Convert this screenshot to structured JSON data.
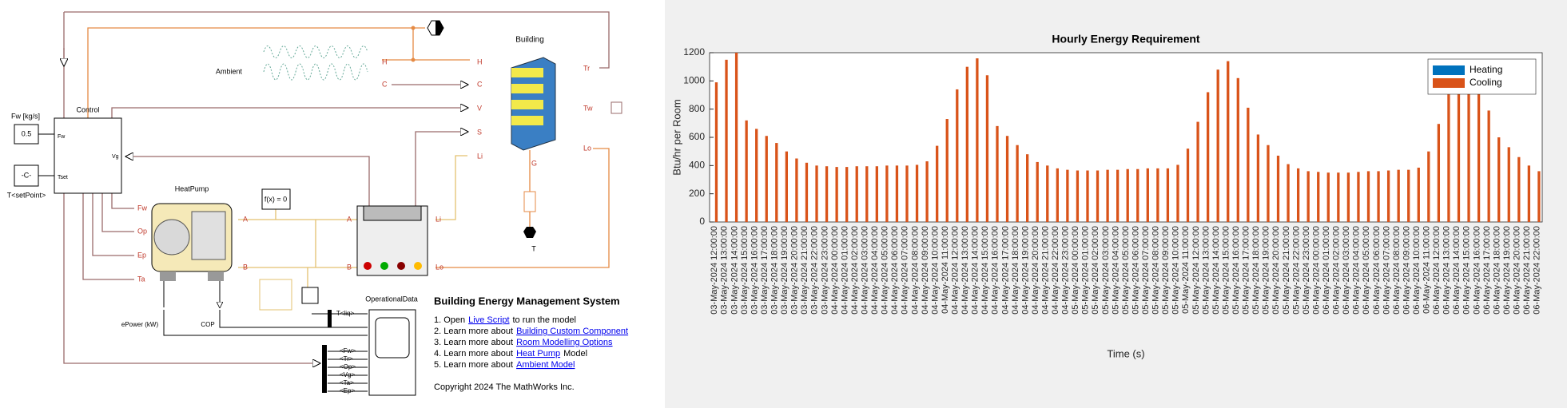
{
  "diagram": {
    "labels": [
      "T",
      "Building",
      "Ambient",
      "H",
      "H",
      "C",
      "C",
      "V",
      "Tr",
      "S",
      "Tw",
      "Li",
      "Lo",
      "G",
      "Fw [kg/s]",
      "0.5",
      "Control",
      "Fw",
      "Tset",
      "Vg",
      "-C-",
      "T<setPoint>",
      "HeatPump",
      "f(x) = 0",
      "Fw",
      "Op",
      "Ep",
      "Ta",
      "A",
      "A",
      "B",
      "B",
      "Li",
      "Lo",
      "T",
      "OperationalData",
      "T<liq>",
      "ePower (kW)",
      "COP",
      "<Fw>",
      "<Tr>",
      "<Op>",
      "<Vg>",
      "<Ta>",
      "<Ep>"
    ],
    "description": {
      "title": "Building Energy Management System",
      "items": [
        {
          "prefix": "1. Open",
          "link": "Live Script",
          "suffix": "to run the model"
        },
        {
          "prefix": "2. Learn more about",
          "link": "Building Custom Component"
        },
        {
          "prefix": "3. Learn more about",
          "link": "Room Modelling Options"
        },
        {
          "prefix": "4. Learn more about",
          "link": "Heat Pump",
          "suffix": "Model"
        },
        {
          "prefix": "5. Learn more about",
          "link": "Ambient Model"
        }
      ],
      "copyright": "Copyright 2024 The MathWorks Inc."
    }
  },
  "chart_data": {
    "type": "bar",
    "title": "Hourly Energy Requirement",
    "x_label": "Time (s)",
    "y_label": "Btu/hr per Room",
    "categories": [
      "03-May-2024 12:00:00",
      "03-May-2024 13:00:00",
      "03-May-2024 14:00:00",
      "03-May-2024 15:00:00",
      "03-May-2024 16:00:00",
      "03-May-2024 17:00:00",
      "03-May-2024 18:00:00",
      "03-May-2024 19:00:00",
      "03-May-2024 20:00:00",
      "03-May-2024 21:00:00",
      "03-May-2024 22:00:00",
      "03-May-2024 23:00:00",
      "04-May-2024 00:00:00",
      "04-May-2024 01:00:00",
      "04-May-2024 02:00:00",
      "04-May-2024 03:00:00",
      "04-May-2024 04:00:00",
      "04-May-2024 05:00:00",
      "04-May-2024 06:00:00",
      "04-May-2024 07:00:00",
      "04-May-2024 08:00:00",
      "04-May-2024 09:00:00",
      "04-May-2024 10:00:00",
      "04-May-2024 11:00:00",
      "04-May-2024 12:00:00",
      "04-May-2024 13:00:00",
      "04-May-2024 14:00:00",
      "04-May-2024 15:00:00",
      "04-May-2024 16:00:00",
      "04-May-2024 17:00:00",
      "04-May-2024 18:00:00",
      "04-May-2024 19:00:00",
      "04-May-2024 20:00:00",
      "04-May-2024 21:00:00",
      "04-May-2024 22:00:00",
      "04-May-2024 23:00:00",
      "05-May-2024 00:00:00",
      "05-May-2024 01:00:00",
      "05-May-2024 02:00:00",
      "05-May-2024 03:00:00",
      "05-May-2024 04:00:00",
      "05-May-2024 05:00:00",
      "05-May-2024 06:00:00",
      "05-May-2024 07:00:00",
      "05-May-2024 08:00:00",
      "05-May-2024 09:00:00",
      "05-May-2024 10:00:00",
      "05-May-2024 11:00:00",
      "05-May-2024 12:00:00",
      "05-May-2024 13:00:00",
      "05-May-2024 14:00:00",
      "05-May-2024 15:00:00",
      "05-May-2024 16:00:00",
      "05-May-2024 17:00:00",
      "05-May-2024 18:00:00",
      "05-May-2024 19:00:00",
      "05-May-2024 20:00:00",
      "05-May-2024 21:00:00",
      "05-May-2024 22:00:00",
      "05-May-2024 23:00:00",
      "06-May-2024 00:00:00",
      "06-May-2024 01:00:00",
      "06-May-2024 02:00:00",
      "06-May-2024 03:00:00",
      "06-May-2024 04:00:00",
      "06-May-2024 05:00:00",
      "06-May-2024 06:00:00",
      "06-May-2024 07:00:00",
      "06-May-2024 08:00:00",
      "06-May-2024 09:00:00",
      "06-May-2024 10:00:00",
      "06-May-2024 11:00:00",
      "06-May-2024 12:00:00",
      "06-May-2024 13:00:00",
      "06-May-2024 14:00:00",
      "06-May-2024 15:00:00",
      "06-May-2024 16:00:00",
      "06-May-2024 17:00:00",
      "06-May-2024 18:00:00",
      "06-May-2024 19:00:00",
      "06-May-2024 20:00:00",
      "06-May-2024 21:00:00",
      "06-May-2024 22:00:00"
    ],
    "series": [
      {
        "name": "Heating",
        "color": "#0072bd",
        "values": [
          0,
          0,
          0,
          0,
          0,
          0,
          0,
          0,
          0,
          0,
          0,
          0,
          0,
          0,
          0,
          0,
          0,
          0,
          0,
          0,
          0,
          0,
          0,
          0,
          0,
          0,
          0,
          0,
          0,
          0,
          0,
          0,
          0,
          0,
          0,
          0,
          0,
          0,
          0,
          0,
          0,
          0,
          0,
          0,
          0,
          0,
          0,
          0,
          0,
          0,
          0,
          0,
          0,
          0,
          0,
          0,
          0,
          0,
          0,
          0,
          0,
          0,
          0,
          0,
          0,
          0,
          0,
          0,
          0,
          0,
          0,
          0,
          0,
          0,
          0,
          0,
          0,
          0,
          0,
          0,
          0,
          0,
          0
        ]
      },
      {
        "name": "Cooling",
        "color": "#d95319",
        "values": [
          990,
          1150,
          1200,
          720,
          660,
          610,
          560,
          500,
          450,
          420,
          400,
          395,
          390,
          390,
          395,
          395,
          395,
          400,
          400,
          400,
          405,
          430,
          540,
          730,
          940,
          1100,
          1160,
          1040,
          680,
          610,
          545,
          480,
          425,
          400,
          380,
          370,
          365,
          365,
          365,
          370,
          370,
          375,
          375,
          380,
          380,
          380,
          405,
          520,
          710,
          920,
          1080,
          1140,
          1020,
          810,
          620,
          545,
          470,
          410,
          380,
          360,
          355,
          350,
          350,
          350,
          355,
          360,
          360,
          365,
          370,
          370,
          385,
          500,
          695,
          905,
          1060,
          1120,
          990,
          790,
          600,
          530,
          460,
          400,
          360
        ]
      }
    ],
    "ylim": [
      0,
      1200
    ],
    "yticks": [
      0,
      200,
      400,
      600,
      800,
      1000,
      1200
    ],
    "grid": false,
    "legend": "northeast"
  }
}
